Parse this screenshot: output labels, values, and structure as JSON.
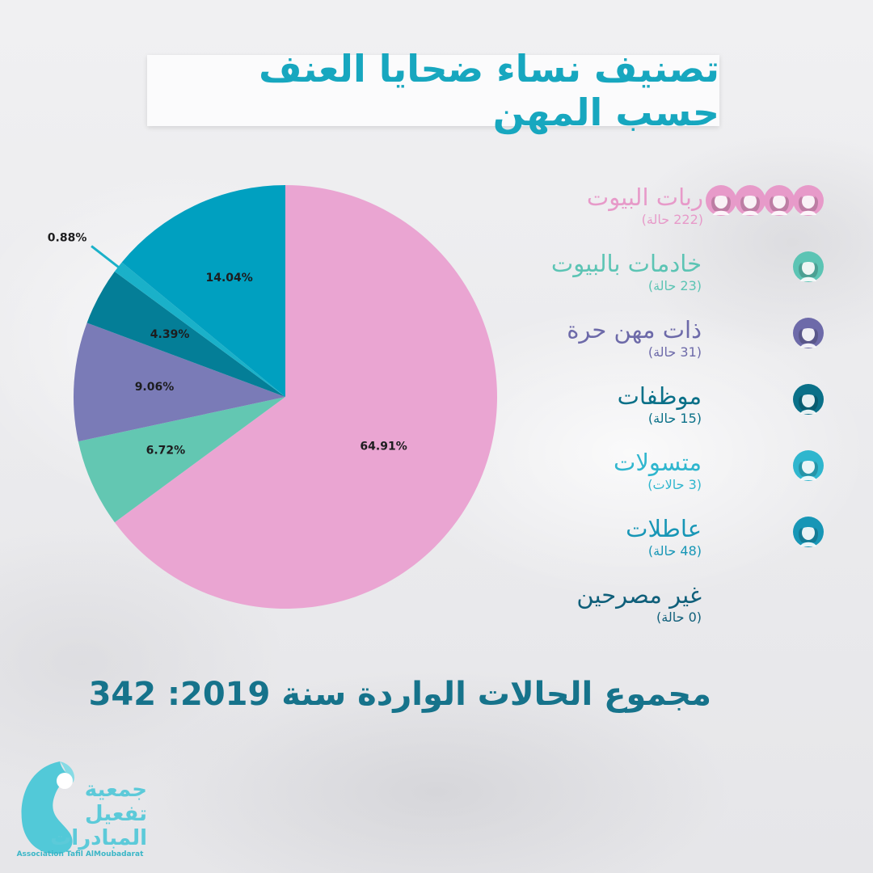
{
  "title": "تصنيف نساء ضحايا العنف حسب المهن",
  "chart_data": {
    "type": "pie",
    "title": "تصنيف نساء ضحايا العنف حسب المهن",
    "slices": [
      {
        "name": "ربات البيوت",
        "count_label": "(222 حالة)",
        "value": 64.91,
        "label": "64.91%",
        "color": "#eaa5d2"
      },
      {
        "name": "خادمات بالبيوت",
        "count_label": "(23 حالة)",
        "value": 6.72,
        "label": "6.72%",
        "color": "#63c7b2"
      },
      {
        "name": "ذات مهن حرة",
        "count_label": "(31 حالة)",
        "value": 9.06,
        "label": "9.06%",
        "color": "#7a7bb7"
      },
      {
        "name": "موظفات",
        "count_label": "(15 حالة)",
        "value": 4.39,
        "label": "4.39%",
        "color": "#047e97"
      },
      {
        "name": "متسولات",
        "count_label": "(3 حالات)",
        "value": 0.88,
        "label": "0.88%",
        "color": "#1ab1c9"
      },
      {
        "name": "عاطلات",
        "count_label": "(48 حالة)",
        "value": 14.04,
        "label": "14.04%",
        "color": "#00a0c0"
      },
      {
        "name": "غير مصرحين",
        "count_label": "(0 حالة)",
        "value": 0,
        "label": "",
        "color": "#0f6f8a"
      }
    ],
    "legend_position": "right"
  },
  "legend_text_colors": [
    "#e79ac9",
    "#5cc4b4",
    "#6d6aa9",
    "#0a7088",
    "#2fb6ce",
    "#1796b6",
    "#0f5f7a"
  ],
  "icon_counts": [
    4,
    1,
    1,
    1,
    1,
    1,
    0
  ],
  "total_text": "مجموع الحالات الواردة سنة 2019: 342",
  "logo": {
    "name_lines": [
      "جمعية",
      "تفعيل",
      "المبادرات"
    ],
    "english": "Association Tafil AlMoubadarat"
  }
}
